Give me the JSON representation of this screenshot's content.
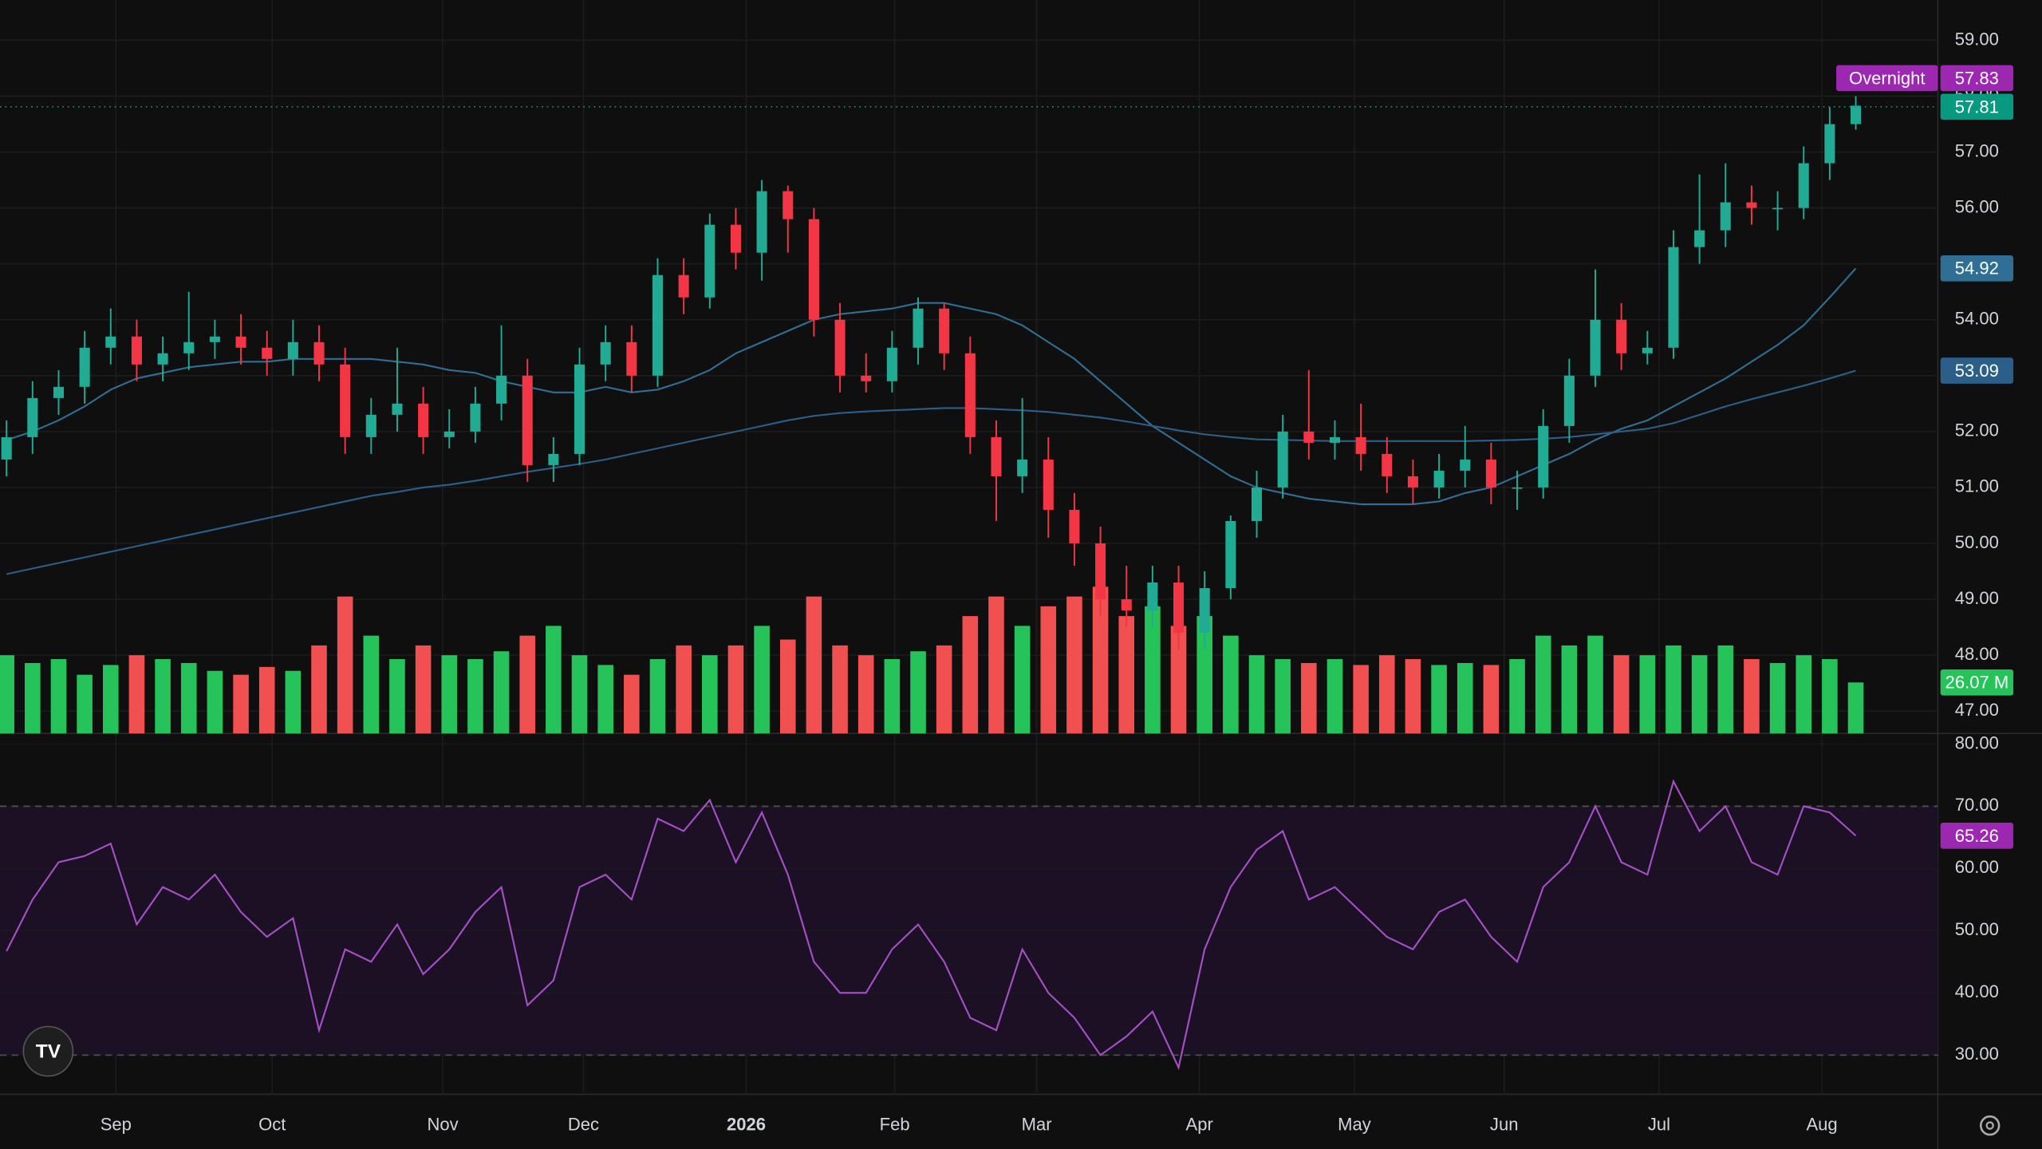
{
  "chart_data": {
    "type": "candlestick",
    "xlim": [
      -0.25,
      74.15
    ],
    "xticks": [
      {
        "value": 4.2,
        "label": "Sep"
      },
      {
        "value": 10.2,
        "label": "Oct"
      },
      {
        "value": 16.75,
        "label": "Nov"
      },
      {
        "value": 22.15,
        "label": "Dec"
      },
      {
        "value": 28.4,
        "label": "2026"
      },
      {
        "value": 34.1,
        "label": "Feb"
      },
      {
        "value": 39.55,
        "label": "Mar"
      },
      {
        "value": 45.8,
        "label": "Apr"
      },
      {
        "value": 51.75,
        "label": "May"
      },
      {
        "value": 57.5,
        "label": "Jun"
      },
      {
        "value": 63.45,
        "label": "Jul"
      },
      {
        "value": 69.7,
        "label": "Aug"
      }
    ],
    "ylim": [
      46.6,
      59.72
    ],
    "yticks": [
      {
        "value": 47,
        "label": "47.00"
      },
      {
        "value": 48,
        "label": "48.00"
      },
      {
        "value": 49,
        "label": "49.00"
      },
      {
        "value": 50,
        "label": "50.00"
      },
      {
        "value": 51,
        "label": "51.00"
      },
      {
        "value": 52,
        "label": "52.00"
      },
      {
        "value": 53,
        "label": "53.00"
      },
      {
        "value": 54,
        "label": "54.00"
      },
      {
        "value": 55,
        "label": "55.00"
      },
      {
        "value": 56,
        "label": "56.00"
      },
      {
        "value": 57,
        "label": "57.00"
      },
      {
        "value": 58,
        "label": "58.00"
      },
      {
        "value": 59,
        "label": "59.00"
      }
    ],
    "grid": true,
    "up_color": "#22ab94",
    "down_color": "#f23645",
    "open": [
      51.5,
      51.9,
      52.6,
      52.8,
      53.5,
      53.7,
      53.2,
      53.4,
      53.6,
      53.7,
      53.5,
      53.3,
      53.6,
      53.2,
      51.9,
      52.3,
      52.5,
      51.9,
      52.0,
      52.5,
      53.0,
      51.4,
      51.6,
      53.2,
      53.6,
      53.0,
      54.8,
      54.4,
      55.7,
      55.2,
      56.3,
      55.8,
      54.0,
      53.0,
      52.9,
      53.5,
      54.2,
      53.4,
      51.9,
      51.2,
      51.5,
      50.6,
      50.0,
      49.0,
      48.8,
      49.3,
      48.4,
      49.2,
      50.4,
      51.0,
      52.0,
      51.8,
      51.9,
      51.6,
      51.2,
      51.0,
      51.3,
      51.5,
      51.0,
      51.0,
      52.1,
      53.0,
      54.0,
      53.4,
      53.5,
      55.3,
      55.6,
      56.1,
      56.0,
      56.0,
      56.8,
      57.5
    ],
    "high": [
      52.2,
      52.9,
      53.1,
      53.8,
      54.2,
      54.0,
      53.7,
      54.5,
      54.0,
      54.1,
      53.8,
      54.0,
      53.9,
      53.5,
      52.6,
      53.5,
      52.8,
      52.4,
      52.8,
      53.9,
      53.3,
      51.9,
      53.5,
      53.9,
      53.9,
      55.1,
      55.1,
      55.9,
      56.0,
      56.5,
      56.4,
      56.0,
      54.3,
      53.4,
      53.8,
      54.4,
      54.3,
      53.7,
      52.2,
      52.6,
      51.9,
      50.9,
      50.3,
      49.6,
      49.6,
      49.6,
      49.5,
      50.5,
      51.3,
      52.3,
      53.1,
      52.2,
      52.5,
      51.9,
      51.5,
      51.6,
      52.1,
      51.8,
      51.3,
      52.4,
      53.3,
      54.9,
      54.3,
      53.8,
      55.6,
      56.6,
      56.8,
      56.4,
      56.3,
      57.1,
      57.8,
      58.0
    ],
    "low": [
      51.2,
      51.6,
      52.3,
      52.5,
      53.2,
      52.9,
      52.9,
      53.1,
      53.3,
      53.2,
      53.0,
      53.0,
      52.9,
      51.6,
      51.6,
      52.0,
      51.6,
      51.7,
      51.8,
      52.2,
      51.1,
      51.1,
      51.4,
      52.9,
      52.7,
      52.8,
      54.1,
      54.2,
      54.9,
      54.7,
      55.2,
      53.7,
      52.7,
      52.7,
      52.7,
      53.2,
      53.1,
      51.6,
      50.4,
      50.9,
      50.1,
      49.6,
      48.7,
      48.5,
      48.5,
      48.1,
      48.1,
      49.0,
      50.1,
      50.8,
      51.5,
      51.5,
      51.3,
      50.9,
      50.7,
      50.8,
      51.0,
      50.7,
      50.6,
      50.8,
      51.8,
      52.8,
      53.1,
      53.2,
      53.3,
      55.0,
      55.3,
      55.7,
      55.6,
      55.8,
      56.5,
      57.4
    ],
    "close": [
      51.9,
      52.6,
      52.8,
      53.5,
      53.7,
      53.2,
      53.4,
      53.6,
      53.7,
      53.5,
      53.3,
      53.6,
      53.2,
      51.9,
      52.3,
      52.5,
      51.9,
      52.0,
      52.5,
      53.0,
      51.4,
      51.6,
      53.2,
      53.6,
      53.0,
      54.8,
      54.4,
      55.7,
      55.2,
      56.3,
      55.8,
      54.0,
      53.0,
      52.9,
      53.5,
      54.2,
      53.4,
      51.9,
      51.2,
      51.5,
      50.6,
      50.0,
      49.0,
      48.8,
      49.3,
      48.4,
      49.2,
      50.4,
      51.0,
      52.0,
      51.8,
      51.9,
      51.6,
      51.2,
      51.0,
      51.3,
      51.5,
      51.0,
      51.0,
      52.1,
      53.0,
      54.0,
      53.4,
      53.5,
      55.3,
      55.6,
      56.1,
      56.0,
      56.0,
      56.8,
      57.5,
      57.83
    ],
    "moving_averages": [
      {
        "color": "#2f6f96",
        "values": [
          51.85,
          52.0,
          52.2,
          52.45,
          52.75,
          52.95,
          53.05,
          53.15,
          53.2,
          53.25,
          53.25,
          53.3,
          53.3,
          53.3,
          53.3,
          53.25,
          53.2,
          53.1,
          53.05,
          52.9,
          52.8,
          52.7,
          52.7,
          52.8,
          52.7,
          52.75,
          52.9,
          53.1,
          53.4,
          53.6,
          53.8,
          54.0,
          54.1,
          54.15,
          54.2,
          54.3,
          54.3,
          54.2,
          54.1,
          53.9,
          53.6,
          53.3,
          52.9,
          52.5,
          52.1,
          51.8,
          51.5,
          51.2,
          51.0,
          50.9,
          50.8,
          50.75,
          50.7,
          50.7,
          50.7,
          50.75,
          50.9,
          51.0,
          51.2,
          51.4,
          51.6,
          51.85,
          52.05,
          52.2,
          52.45,
          52.7,
          52.95,
          53.25,
          53.55,
          53.9,
          54.4,
          54.92
        ],
        "last_label": {
          "value": 54.92,
          "label": "54.92"
        }
      },
      {
        "color": "#2b5f8a",
        "values": [
          49.45,
          49.55,
          49.65,
          49.75,
          49.85,
          49.95,
          50.05,
          50.15,
          50.25,
          50.35,
          50.45,
          50.55,
          50.65,
          50.75,
          50.85,
          50.92,
          51.0,
          51.05,
          51.12,
          51.2,
          51.28,
          51.35,
          51.42,
          51.5,
          51.6,
          51.7,
          51.8,
          51.9,
          52.0,
          52.1,
          52.2,
          52.28,
          52.33,
          52.36,
          52.38,
          52.4,
          52.42,
          52.42,
          52.4,
          52.38,
          52.35,
          52.3,
          52.25,
          52.18,
          52.1,
          52.02,
          51.95,
          51.9,
          51.86,
          51.85,
          51.84,
          51.83,
          51.83,
          51.83,
          51.83,
          51.83,
          51.83,
          51.84,
          51.85,
          51.87,
          51.9,
          51.95,
          52.0,
          52.05,
          52.15,
          52.3,
          52.45,
          52.58,
          52.7,
          52.82,
          52.95,
          53.09
        ],
        "last_label": {
          "value": 53.09,
          "label": "53.09"
        }
      }
    ],
    "price_labels": [
      {
        "value": 57.83,
        "label": "57.83",
        "tag": "Overnight",
        "color": "#9c27b0"
      },
      {
        "value": 57.81,
        "label": "57.81",
        "color": "#089981"
      }
    ],
    "volume": {
      "type": "bar",
      "ylim": [
        0,
        375
      ],
      "up_color": "#26c35a",
      "down_color": "#f05050",
      "values": [
        40,
        36,
        38,
        30,
        35,
        40,
        38,
        36,
        32,
        30,
        34,
        32,
        45,
        70,
        50,
        38,
        45,
        40,
        38,
        42,
        50,
        55,
        40,
        35,
        30,
        38,
        45,
        40,
        45,
        55,
        48,
        70,
        45,
        40,
        38,
        42,
        45,
        60,
        70,
        55,
        65,
        70,
        75,
        60,
        65,
        55,
        60,
        50,
        40,
        38,
        36,
        38,
        35,
        40,
        38,
        35,
        36,
        35,
        38,
        50,
        45,
        50,
        40,
        40,
        45,
        40,
        45,
        38,
        36,
        40,
        38,
        26.07
      ],
      "last_label": {
        "value": 26.07,
        "label": "26.07 M"
      }
    },
    "rsi": {
      "type": "line",
      "color": "#a64fc8",
      "band_color": "#1c1024",
      "ylim": [
        23.7,
        81.7
      ],
      "yticks": [
        {
          "value": 30,
          "label": "30.00"
        },
        {
          "value": 40,
          "label": "40.00"
        },
        {
          "value": 50,
          "label": "50.00"
        },
        {
          "value": 60,
          "label": "60.00"
        },
        {
          "value": 70,
          "label": "70.00"
        },
        {
          "value": 80,
          "label": "80.00"
        }
      ],
      "bands": [
        30,
        70
      ],
      "values": [
        46.7,
        55,
        61,
        62,
        64,
        51,
        57,
        55,
        59,
        53,
        49,
        52,
        34,
        47,
        45,
        51,
        43,
        47,
        53,
        57,
        38,
        42,
        57,
        59,
        55,
        68,
        66,
        71,
        61,
        69,
        59,
        45,
        40,
        40,
        47,
        51,
        45,
        36,
        34,
        47,
        40,
        36,
        30,
        33,
        37,
        28,
        47,
        57,
        63,
        66,
        55,
        57,
        53,
        49,
        47,
        53,
        55,
        49,
        45,
        57,
        61,
        70,
        61,
        59,
        74,
        66,
        70,
        61,
        59,
        70,
        69,
        65.26
      ],
      "last_label": {
        "value": 65.26,
        "label": "65.26"
      }
    }
  }
}
